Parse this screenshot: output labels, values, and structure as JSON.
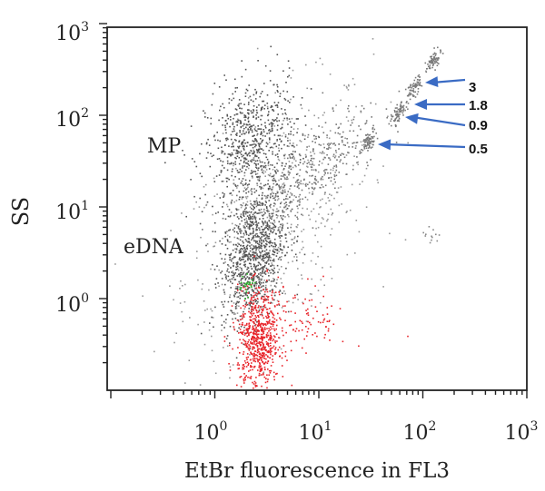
{
  "chart_data": {
    "type": "scatter",
    "title": "",
    "xlabel": "EtBr fluorescence in FL3",
    "ylabel": "SS",
    "x_scale": "log",
    "y_scale": "log",
    "xlim": [
      0.1,
      1000
    ],
    "ylim": [
      0.1,
      1000
    ],
    "x_ticks": [
      {
        "value": 1,
        "base": "10",
        "exp": "0"
      },
      {
        "value": 10,
        "base": "10",
        "exp": "1"
      },
      {
        "value": 100,
        "base": "10",
        "exp": "2"
      },
      {
        "value": 1000,
        "base": "10",
        "exp": "3"
      }
    ],
    "y_ticks": [
      {
        "value": 1,
        "base": "10",
        "exp": "0"
      },
      {
        "value": 10,
        "base": "10",
        "exp": "1"
      },
      {
        "value": 100,
        "base": "10",
        "exp": "2"
      },
      {
        "value": 1000,
        "base": "10",
        "exp": "3"
      }
    ],
    "grid": false,
    "legend": "none",
    "populations": [
      {
        "label": "MP",
        "color": "#555555",
        "center_x": 2.2,
        "center_y": 50
      },
      {
        "label": "eDNA",
        "color": "#555555",
        "center_x": 2.3,
        "center_y": 3.0
      },
      {
        "label": "",
        "color": "#e8242a",
        "center_x": 2.6,
        "center_y": 0.35
      },
      {
        "label": "",
        "color": "#2db82d",
        "center_x": 2.0,
        "center_y": 1.4
      }
    ],
    "bead_clusters": [
      {
        "label": "3",
        "x": 125,
        "y": 400
      },
      {
        "label": "1.8",
        "x": 80,
        "y": 200
      },
      {
        "label": "0.9",
        "x": 58,
        "y": 105
      },
      {
        "label": "0.5",
        "x": 30,
        "y": 55
      }
    ],
    "arrow_color": "#3a6bc4"
  }
}
